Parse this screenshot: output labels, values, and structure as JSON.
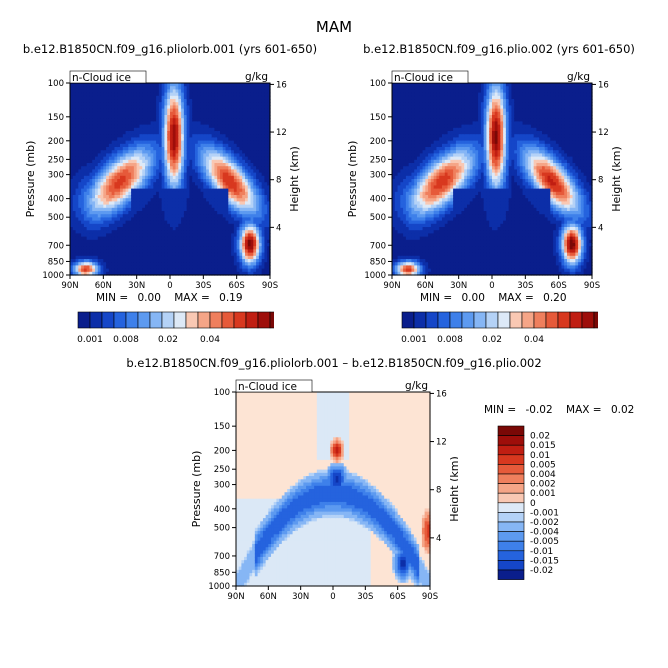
{
  "figure_title": "MAM",
  "colors": {
    "cold": [
      "#0a1e8c",
      "#0c2ea8",
      "#1546c8",
      "#2563de",
      "#3e80ea",
      "#5d9af0",
      "#86b6f5",
      "#b4d2f7",
      "#dde9f7"
    ],
    "warm": [
      "#fde6dc",
      "#f9c8b3",
      "#f5a587",
      "#ef7f5d",
      "#e65a3a",
      "#d8381f",
      "#c01e12",
      "#9e0e0a",
      "#7a0806"
    ],
    "diff_bg": "#fde4d4",
    "diff_neutral": "#dbe8f6"
  },
  "chart_data": [
    {
      "id": "panel-pliolorb",
      "type": "heatmap",
      "title": "b.e12.B1850CN.f09_g16.pliolorb.001 (yrs 601-650)",
      "field_label": "n-Cloud ice",
      "units": "g/kg",
      "ylabel": "Pressure (mb)",
      "y2label": "Height (km)",
      "x_ticks": [
        "90N",
        "60N",
        "30N",
        "0",
        "30S",
        "60S",
        "90S"
      ],
      "x_values": [
        90,
        60,
        30,
        0,
        -30,
        -60,
        -90
      ],
      "p_ticks": [
        100,
        150,
        200,
        250,
        300,
        400,
        500,
        700,
        850,
        1000
      ],
      "height_ticks": [
        4,
        8,
        12,
        16
      ],
      "stats": {
        "min": "0.00",
        "max": "0.19"
      },
      "colorbar_levels": [
        "0.001",
        "0.008",
        "0.02",
        "0.04"
      ]
    },
    {
      "id": "panel-plio",
      "type": "heatmap",
      "title": "b.e12.B1850CN.f09_g16.plio.002 (yrs 601-650)",
      "field_label": "n-Cloud ice",
      "units": "g/kg",
      "ylabel": "Pressure (mb)",
      "y2label": "Height (km)",
      "x_ticks": [
        "90N",
        "60N",
        "30N",
        "0",
        "30S",
        "60S",
        "90S"
      ],
      "x_values": [
        90,
        60,
        30,
        0,
        -30,
        -60,
        -90
      ],
      "p_ticks": [
        100,
        150,
        200,
        250,
        300,
        400,
        500,
        700,
        850,
        1000
      ],
      "height_ticks": [
        4,
        8,
        12,
        16
      ],
      "stats": {
        "min": "0.00",
        "max": "0.20"
      },
      "colorbar_levels": [
        "0.001",
        "0.008",
        "0.02",
        "0.04"
      ]
    },
    {
      "id": "panel-diff",
      "type": "heatmap",
      "title": "b.e12.B1850CN.f09_g16.pliolorb.001 – b.e12.B1850CN.f09_g16.plio.002",
      "field_label": "n-Cloud ice",
      "units": "g/kg",
      "ylabel": "Pressure (mb)",
      "y2label": "Height (km)",
      "x_ticks": [
        "90N",
        "60N",
        "30N",
        "0",
        "30S",
        "60S",
        "90S"
      ],
      "x_values": [
        90,
        60,
        30,
        0,
        -30,
        -60,
        -90
      ],
      "p_ticks": [
        100,
        150,
        200,
        250,
        300,
        400,
        500,
        700,
        850,
        1000
      ],
      "height_ticks": [
        4,
        8,
        12,
        16
      ],
      "stats": {
        "min": "-0.02",
        "max": "0.02"
      },
      "colorbar_levels": [
        "0.02",
        "0.015",
        "0.01",
        "0.005",
        "0.004",
        "0.002",
        "0.001",
        "0",
        "-0.001",
        "-0.002",
        "-0.004",
        "-0.005",
        "-0.01",
        "-0.015",
        "-0.02"
      ]
    }
  ],
  "labels": {
    "min_label": "MIN =",
    "max_label": "MAX ="
  }
}
